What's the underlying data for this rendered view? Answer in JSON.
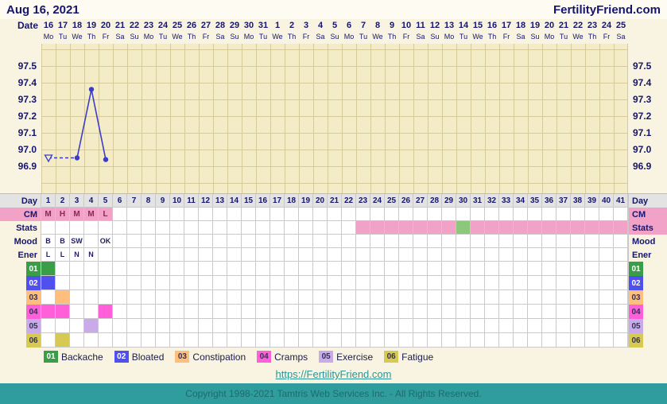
{
  "header": {
    "date": "Aug 16, 2021",
    "site": "FertilityFriend.com"
  },
  "date_row": {
    "label": "Date",
    "dates": [
      "16",
      "17",
      "18",
      "19",
      "20",
      "21",
      "22",
      "23",
      "24",
      "25",
      "26",
      "27",
      "28",
      "29",
      "30",
      "31",
      "1",
      "2",
      "3",
      "4",
      "5",
      "6",
      "7",
      "8",
      "9",
      "10",
      "11",
      "12",
      "13",
      "14",
      "15",
      "16",
      "17",
      "18",
      "19",
      "20",
      "21",
      "22",
      "23",
      "24",
      "25"
    ],
    "weekdays": [
      "Mo",
      "Tu",
      "We",
      "Th",
      "Fr",
      "Sa",
      "Su",
      "Mo",
      "Tu",
      "We",
      "Th",
      "Fr",
      "Sa",
      "Su",
      "Mo",
      "Tu",
      "We",
      "Th",
      "Fr",
      "Sa",
      "Su",
      "Mo",
      "Tu",
      "We",
      "Th",
      "Fr",
      "Sa",
      "Su",
      "Mo",
      "Tu",
      "We",
      "Th",
      "Fr",
      "Sa",
      "Su",
      "Mo",
      "Tu",
      "We",
      "Th",
      "Fr",
      "Sa"
    ]
  },
  "chart_data": {
    "type": "line",
    "x_unit": "cycle_day",
    "y_ticks": [
      "97.5",
      "97.4",
      "97.3",
      "97.2",
      "97.1",
      "97.0",
      "96.9"
    ],
    "y_top_value": 97.5,
    "y_step": 0.1,
    "ylim": [
      96.74,
      97.63
    ],
    "grid": true,
    "line_color": "#3c3cc8",
    "points": [
      {
        "day": 1,
        "temp": 96.95,
        "marker": "open-triangle"
      },
      {
        "day": 3,
        "temp": 96.95,
        "marker": "dot"
      },
      {
        "day": 4,
        "temp": 97.36,
        "marker": "dot"
      },
      {
        "day": 5,
        "temp": 96.94,
        "marker": "dot"
      }
    ],
    "segments": [
      {
        "from": 0,
        "to": 1,
        "style": "dashed"
      },
      {
        "from": 1,
        "to": 2,
        "style": "solid"
      },
      {
        "from": 2,
        "to": 3,
        "style": "solid"
      }
    ]
  },
  "rows": {
    "day": {
      "label": "Day",
      "values": [
        "1",
        "2",
        "3",
        "4",
        "5",
        "6",
        "7",
        "8",
        "9",
        "10",
        "11",
        "12",
        "13",
        "14",
        "15",
        "16",
        "17",
        "18",
        "19",
        "20",
        "21",
        "22",
        "23",
        "24",
        "25",
        "26",
        "27",
        "28",
        "29",
        "30",
        "31",
        "32",
        "33",
        "34",
        "35",
        "36",
        "37",
        "38",
        "39",
        "40",
        "41"
      ]
    },
    "cm": {
      "label": "CM",
      "label_bg": "#f2a2c6",
      "text_color": "#8f2456",
      "cells": [
        {
          "day": 1,
          "text": "M",
          "bg": "#f2a2c6"
        },
        {
          "day": 2,
          "text": "H",
          "bg": "#f2a2c6"
        },
        {
          "day": 3,
          "text": "M",
          "bg": "#f2a2c6"
        },
        {
          "day": 4,
          "text": "M",
          "bg": "#f2a2c6"
        },
        {
          "day": 5,
          "text": "L",
          "bg": "#f2a2c6"
        }
      ]
    },
    "stats": {
      "label": "Stats",
      "right_label_bg": "#f2a2c6",
      "ranges": [
        {
          "from": 23,
          "to": 41,
          "color": "#f2a2c6"
        },
        {
          "from": 30,
          "to": 30,
          "color": "#8cc87c"
        }
      ]
    },
    "mood": {
      "label": "Mood",
      "cells": [
        {
          "day": 1,
          "text": "B"
        },
        {
          "day": 2,
          "text": "B"
        },
        {
          "day": 3,
          "text": "SW"
        },
        {
          "day": 5,
          "text": "OK"
        }
      ]
    },
    "ener": {
      "label": "Ener",
      "cells": [
        {
          "day": 1,
          "text": "L"
        },
        {
          "day": 2,
          "text": "L"
        },
        {
          "day": 3,
          "text": "N"
        },
        {
          "day": 4,
          "text": "N"
        }
      ]
    }
  },
  "symptoms": [
    {
      "code": "01",
      "name": "Backache",
      "color": "#3a9e49",
      "text_color": "#ffffff",
      "days": [
        1
      ]
    },
    {
      "code": "02",
      "name": "Bloated",
      "color": "#5050ee",
      "text_color": "#ffffff",
      "days": [
        1
      ]
    },
    {
      "code": "03",
      "name": "Constipation",
      "color": "#ffbe7d",
      "text_color": "#333355",
      "days": [
        2
      ]
    },
    {
      "code": "04",
      "name": "Cramps",
      "color": "#ff5fd8",
      "text_color": "#333355",
      "days": [
        1,
        2,
        5
      ]
    },
    {
      "code": "05",
      "name": "Exercise",
      "color": "#c9abe9",
      "text_color": "#333355",
      "days": [
        4
      ]
    },
    {
      "code": "06",
      "name": "Fatigue",
      "color": "#d6ca52",
      "text_color": "#333355",
      "days": [
        2
      ]
    }
  ],
  "footer": {
    "link": "https://FertilityFriend.com",
    "copyright": "Copyright 1998-2021 Tamtris Web Services Inc. - All Rights Reserved."
  }
}
